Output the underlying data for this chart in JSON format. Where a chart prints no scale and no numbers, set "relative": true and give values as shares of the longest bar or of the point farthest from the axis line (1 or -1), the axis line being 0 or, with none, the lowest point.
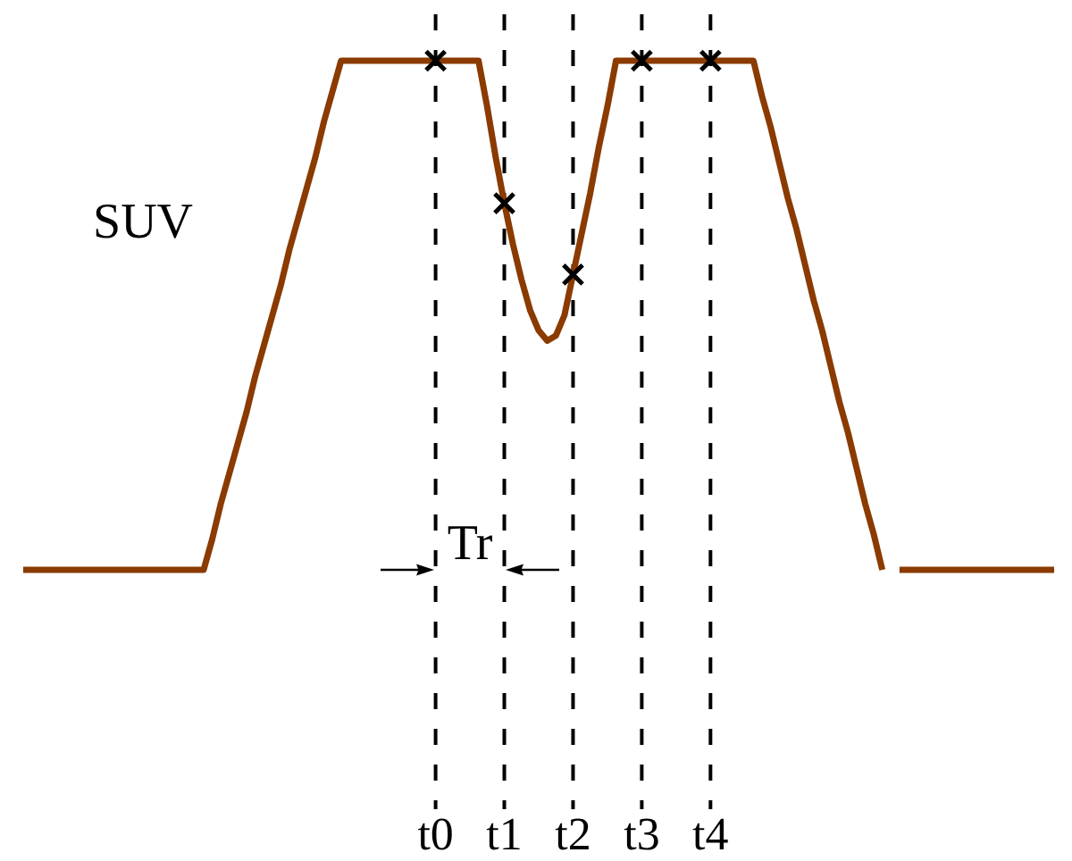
{
  "chart_data": {
    "type": "line",
    "ylabel": "SUV",
    "relative": true,
    "tick_labels": "x",
    "categories": [
      null,
      null,
      null,
      null,
      null,
      null,
      null,
      null,
      null,
      null,
      null,
      null,
      null,
      null,
      null,
      null,
      null,
      null,
      null,
      null,
      null,
      null,
      null,
      null,
      null,
      null,
      null,
      null,
      null,
      null,
      null,
      null,
      null,
      null,
      null,
      null,
      null,
      null,
      null,
      null,
      null,
      null,
      null,
      null,
      null,
      null,
      null,
      null,
      "t0",
      null,
      null,
      null,
      null,
      null,
      null,
      null,
      "t1",
      null,
      null,
      null,
      null,
      null,
      null,
      null,
      "t2",
      null,
      null,
      null,
      null,
      null,
      null,
      null,
      "t3",
      null,
      null,
      null,
      null,
      null,
      null,
      null,
      "t4",
      null,
      null,
      null,
      null,
      null,
      null,
      null,
      null,
      null,
      null,
      null,
      null,
      null,
      null,
      null,
      null,
      null,
      null,
      null,
      null,
      null,
      null,
      null,
      null,
      null,
      null,
      null,
      null,
      null,
      null,
      null,
      null,
      null,
      null,
      null,
      null,
      null,
      null,
      null,
      null
    ],
    "series": [
      {
        "color": "#8b3a00",
        "values": [
          0,
          0,
          0,
          0,
          0,
          0,
          0,
          0,
          0,
          0,
          0,
          0,
          0,
          0,
          0,
          0,
          0,
          0,
          0,
          0,
          0,
          0,
          0.06,
          0.13,
          0.19,
          0.25,
          0.31,
          0.38,
          0.44,
          0.5,
          0.56,
          0.63,
          0.69,
          0.75,
          0.81,
          0.88,
          0.94,
          1,
          1,
          1,
          1,
          1,
          1,
          1,
          1,
          1,
          1,
          1,
          1,
          1,
          1,
          1,
          1,
          1,
          0.91,
          0.81,
          0.72,
          0.64,
          0.57,
          0.51,
          0.47,
          0.45,
          0.46,
          0.5,
          0.58,
          0.66,
          0.74,
          0.83,
          0.91,
          1,
          1,
          1,
          1,
          1,
          1,
          1,
          1,
          1,
          1,
          1,
          1,
          1,
          1,
          1,
          1,
          1,
          0.93,
          0.87,
          0.8,
          0.73,
          0.67,
          0.6,
          0.53,
          0.47,
          0.4,
          0.33,
          0.27,
          0.2,
          0.13,
          0.07,
          0,
          null,
          0,
          0,
          0,
          0,
          0,
          0,
          0,
          0,
          0,
          0,
          0,
          0,
          0,
          0,
          0,
          0,
          0,
          0,
          0
        ]
      },
      {
        "type": "scatter",
        "color": "#000000",
        "marker": "cross",
        "x": [
          "t0",
          "t1",
          "t2",
          "t3",
          "t4"
        ],
        "values": [
          1,
          0.72,
          0.58,
          1,
          1
        ]
      }
    ],
    "ref_lines": [
      {
        "axis": "x",
        "value": "t0",
        "line_style": "dashed",
        "color": "#000000"
      },
      {
        "axis": "x",
        "value": "t1",
        "line_style": "dashed",
        "color": "#000000"
      },
      {
        "axis": "x",
        "value": "t2",
        "line_style": "dashed",
        "color": "#000000"
      },
      {
        "axis": "x",
        "value": "t3",
        "line_style": "dashed",
        "color": "#000000"
      },
      {
        "axis": "x",
        "value": "t4",
        "line_style": "dashed",
        "color": "#000000"
      }
    ],
    "annotations": [
      "Tr"
    ]
  }
}
